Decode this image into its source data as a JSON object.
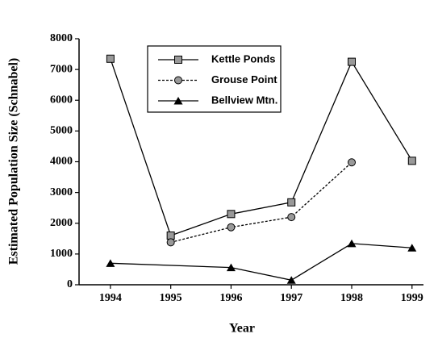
{
  "chart_data": {
    "type": "line",
    "xlabel": "Year",
    "ylabel": "Estimated Population Size (Schnabel)",
    "xlim": [
      1993.48,
      1999.19
    ],
    "xticks": [
      1994,
      1995,
      1996,
      1997,
      1998,
      1999
    ],
    "ylim": [
      0,
      8000
    ],
    "yticks": [
      0,
      1000,
      2000,
      3000,
      4000,
      5000,
      6000,
      7000,
      8000
    ],
    "legend": "top-center",
    "series": [
      {
        "name": "Kettle Ponds",
        "color": "#000000",
        "marker": "square",
        "linestyle": "solid",
        "x": [
          1994,
          1995,
          1996,
          1997,
          1998,
          1999
        ],
        "values": [
          7350,
          1600,
          2300,
          2680,
          7250,
          4030
        ]
      },
      {
        "name": "Grouse Point",
        "color": "#000000",
        "marker": "circle",
        "linestyle": "dashed",
        "x": [
          1995,
          1996,
          1997,
          1998
        ],
        "values": [
          1380,
          1870,
          2200,
          3980
        ]
      },
      {
        "name": "Bellview Mtn.",
        "color": "#000000",
        "marker": "triangle",
        "linestyle": "solid",
        "x": [
          1994,
          1996,
          1997,
          1998,
          1999
        ],
        "values": [
          700,
          560,
          150,
          1340,
          1200
        ]
      }
    ]
  }
}
